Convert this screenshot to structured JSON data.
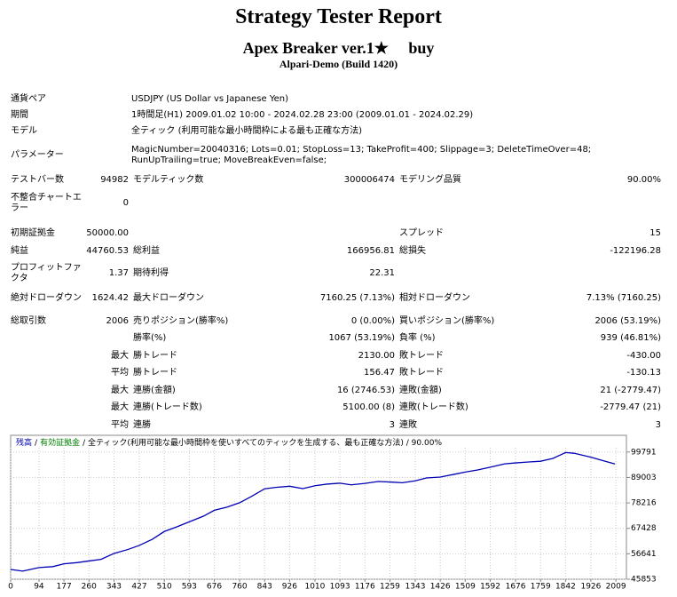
{
  "header": {
    "title": "Strategy Tester Report",
    "subtitle": "Apex Breaker ver.1★　 buy",
    "build": "Alpari-Demo (Build 1420)"
  },
  "report": {
    "rows": [
      [
        "通貨ペア",
        "USDJPY (US Dollar vs Japanese Yen)"
      ],
      [
        "期間",
        "1時間足(H1) 2009.01.02 10:00 - 2024.02.28 23:00 (2009.01.01 - 2024.02.29)"
      ],
      [
        "モデル",
        "全ティック (利用可能な最小時間枠による最も正確な方法)"
      ],
      [
        "パラメーター",
        "MagicNumber=20040316; Lots=0.01; StopLoss=13; TakeProfit=400; Slippage=3; DeleteTimeOver=48; RunUpTrailing=true; MoveBreakEven=false;"
      ],
      [
        "テストバー数",
        "94982",
        "モデルティック数",
        "300006474",
        "モデリング品質",
        "90.00%"
      ],
      [
        "不整合チャートエラー",
        "0"
      ],
      [
        "初期証拠金",
        "50000.00",
        "スプレッド",
        "15"
      ],
      [
        "純益",
        "44760.53",
        "総利益",
        "166956.81",
        "総損失",
        "-122196.28"
      ],
      [
        "プロフィットファクタ",
        "1.37",
        "期待利得",
        "22.31"
      ],
      [
        "絶対ドローダウン",
        "1624.42",
        "最大ドローダウン",
        "7160.25 (7.13%)",
        "相対ドローダウン",
        "7.13% (7160.25)"
      ],
      [
        "総取引数",
        "2006",
        "売りポジション(勝率%)",
        "0 (0.00%)",
        "買いポジション(勝率%)",
        "2006 (53.19%)"
      ],
      [
        "勝率(%)",
        "1067 (53.19%)",
        "負率 (%)",
        "939 (46.81%)"
      ],
      [
        "最大",
        "勝トレード",
        "2130.00",
        "敗トレード",
        "-430.00"
      ],
      [
        "平均",
        "勝トレード",
        "156.47",
        "敗トレード",
        "-130.13"
      ],
      [
        "最大",
        "連勝(金額)",
        "16 (2746.53)",
        "連敗(金額)",
        "21 (-2779.47)"
      ],
      [
        "最大",
        "連勝(トレード数)",
        "5100.00 (8)",
        "連敗(トレード数)",
        "-2779.47 (21)"
      ],
      [
        "平均",
        "連勝",
        "3",
        "連敗",
        "3"
      ]
    ]
  },
  "chart_data": {
    "type": "line",
    "legend_equity": "有効証拠金",
    "separator": "/",
    "note": "/ 全ティック(利用可能な最小時間枠を使いすべてのティックを生成する、最も正確な方法) / 90.00%",
    "x": [
      0,
      40,
      94,
      140,
      177,
      220,
      260,
      300,
      343,
      390,
      427,
      470,
      510,
      550,
      593,
      640,
      676,
      720,
      760,
      800,
      843,
      880,
      926,
      970,
      1010,
      1050,
      1093,
      1130,
      1176,
      1220,
      1259,
      1300,
      1343,
      1380,
      1426,
      1470,
      1509,
      1550,
      1592,
      1640,
      1676,
      1720,
      1759,
      1800,
      1842,
      1870,
      1926,
      1970,
      2006
    ],
    "series": [
      {
        "name": "残高",
        "color": "#0000b4",
        "values": [
          50000,
          49300,
          50800,
          51200,
          52400,
          52900,
          53600,
          54300,
          56800,
          58500,
          60200,
          62800,
          66100,
          68000,
          70200,
          72600,
          75100,
          76500,
          78300,
          81000,
          84200,
          84800,
          85300,
          84300,
          85500,
          86200,
          86600,
          85900,
          86500,
          87300,
          87100,
          86800,
          87600,
          88800,
          89200,
          90300,
          91300,
          92200,
          93400,
          94800,
          95200,
          95600,
          95900,
          97100,
          99600,
          99300,
          97600,
          96000,
          94760.53
        ]
      }
    ],
    "equity_color": "#008000",
    "xlim": [
      0,
      2044
    ],
    "ylim": [
      45853,
      106900
    ],
    "xticks": [
      0,
      94,
      177,
      260,
      343,
      427,
      510,
      593,
      676,
      760,
      843,
      926,
      1010,
      1093,
      1176,
      1259,
      1343,
      1426,
      1509,
      1592,
      1676,
      1759,
      1842,
      1926,
      2009
    ],
    "yticks": [
      45853,
      56641,
      67428,
      78216,
      89003,
      99791
    ],
    "grid": true
  }
}
